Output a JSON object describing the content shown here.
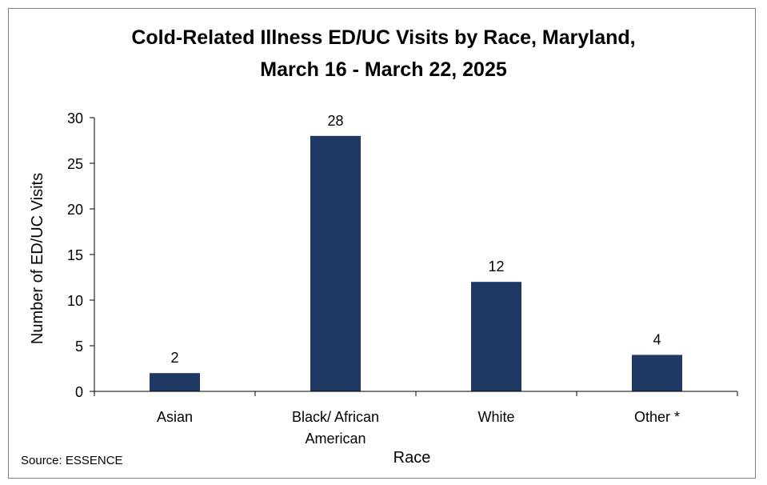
{
  "chart_data": {
    "type": "bar",
    "title_line1": "Cold-Related Illness ED/UC Visits by Race, Maryland,",
    "title_line2": "March 16 - March 22, 2025",
    "categories": [
      [
        "Asian"
      ],
      [
        "Black/ African",
        "American"
      ],
      [
        "White"
      ],
      [
        "Other *"
      ]
    ],
    "values": [
      2,
      28,
      12,
      4
    ],
    "xlabel": "Race",
    "ylabel": "Number of ED/UC Visits",
    "ylim": [
      0,
      30
    ],
    "yticks": [
      0,
      5,
      10,
      15,
      20,
      25,
      30
    ],
    "bar_color": "#1F3864",
    "grid": false,
    "data_labels": true,
    "source": "Source: ESSENCE"
  }
}
